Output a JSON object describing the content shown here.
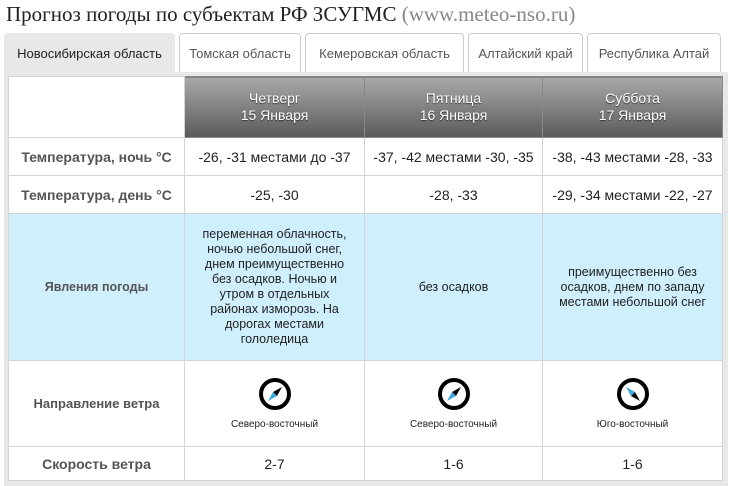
{
  "title": {
    "main": "Прогноз погоды по субъектам РФ ЗСУГМС",
    "site": "(www.meteo-nso.ru)"
  },
  "tabs": [
    {
      "label": "Новосибирская область",
      "active": true
    },
    {
      "label": "Томская область",
      "active": false
    },
    {
      "label": "Кемеровская область",
      "active": false
    },
    {
      "label": "Алтайский край",
      "active": false
    },
    {
      "label": "Республика Алтай",
      "active": false
    }
  ],
  "days": [
    {
      "weekday": "Четверг",
      "date": "15 Января",
      "night": "-26, -31 местами до -37",
      "day": "-25, -30",
      "weather": "переменная облачность, ночью небольшой снег, днем преимущественно без осадков. Ночью и утром в отдельных районах изморозь. На дорогах местами гололедица",
      "wind_dir": "Северо-восточный",
      "wind_icon": "compass-northeast",
      "wind_speed": "2-7"
    },
    {
      "weekday": "Пятница",
      "date": "16 Января",
      "night": "-37, -42 местами -30, -35",
      "day": "-28, -33",
      "weather": "без осадков",
      "wind_dir": "Северо-восточный",
      "wind_icon": "compass-northeast",
      "wind_speed": "1-6"
    },
    {
      "weekday": "Суббота",
      "date": "17 Января",
      "night": "-38, -43 местами -28, -33",
      "day": "-29, -34 местами -22, -27",
      "weather": "преимущественно без осадков, днем по западу местами небольшой снег",
      "wind_dir": "Юго-восточный",
      "wind_icon": "compass-southeast",
      "wind_speed": "1-6"
    }
  ],
  "rows": {
    "night": "Температура, ночь °C",
    "day": "Температура, день °C",
    "weather": "Явления погоды",
    "wind_dir": "Направление ветра",
    "wind_speed": "Скорость ветра"
  },
  "colors": {
    "weather_row": "#cfeffc",
    "compass_arrow": "#3aa8e0"
  }
}
